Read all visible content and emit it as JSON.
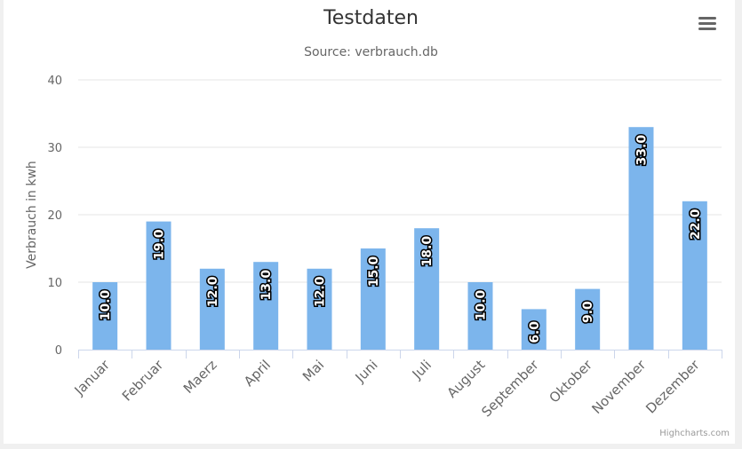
{
  "chart_data": {
    "type": "bar",
    "title": "Testdaten",
    "subtitle": "Source: verbrauch.db",
    "ylabel": "Verbrauch in kwh",
    "xlabel": "",
    "ylim": [
      0,
      40
    ],
    "yticks": [
      0,
      10,
      20,
      30,
      40
    ],
    "categories": [
      "Januar",
      "Februar",
      "Maerz",
      "April",
      "Mai",
      "Juni",
      "Juli",
      "August",
      "September",
      "Oktober",
      "November",
      "Dezember"
    ],
    "values": [
      10.0,
      19.0,
      12.0,
      13.0,
      12.0,
      15.0,
      18.0,
      10.0,
      6.0,
      9.0,
      33.0,
      22.0
    ],
    "data_labels": [
      "10.0",
      "19.0",
      "12.0",
      "13.0",
      "12.0",
      "15.0",
      "18.0",
      "10.0",
      "6.0",
      "9.0",
      "33.0",
      "22.0"
    ],
    "bar_color": "#7cb5ec",
    "grid": true,
    "legend": false
  },
  "menu_icon": "hamburger-menu-icon",
  "credits": "Highcharts.com"
}
